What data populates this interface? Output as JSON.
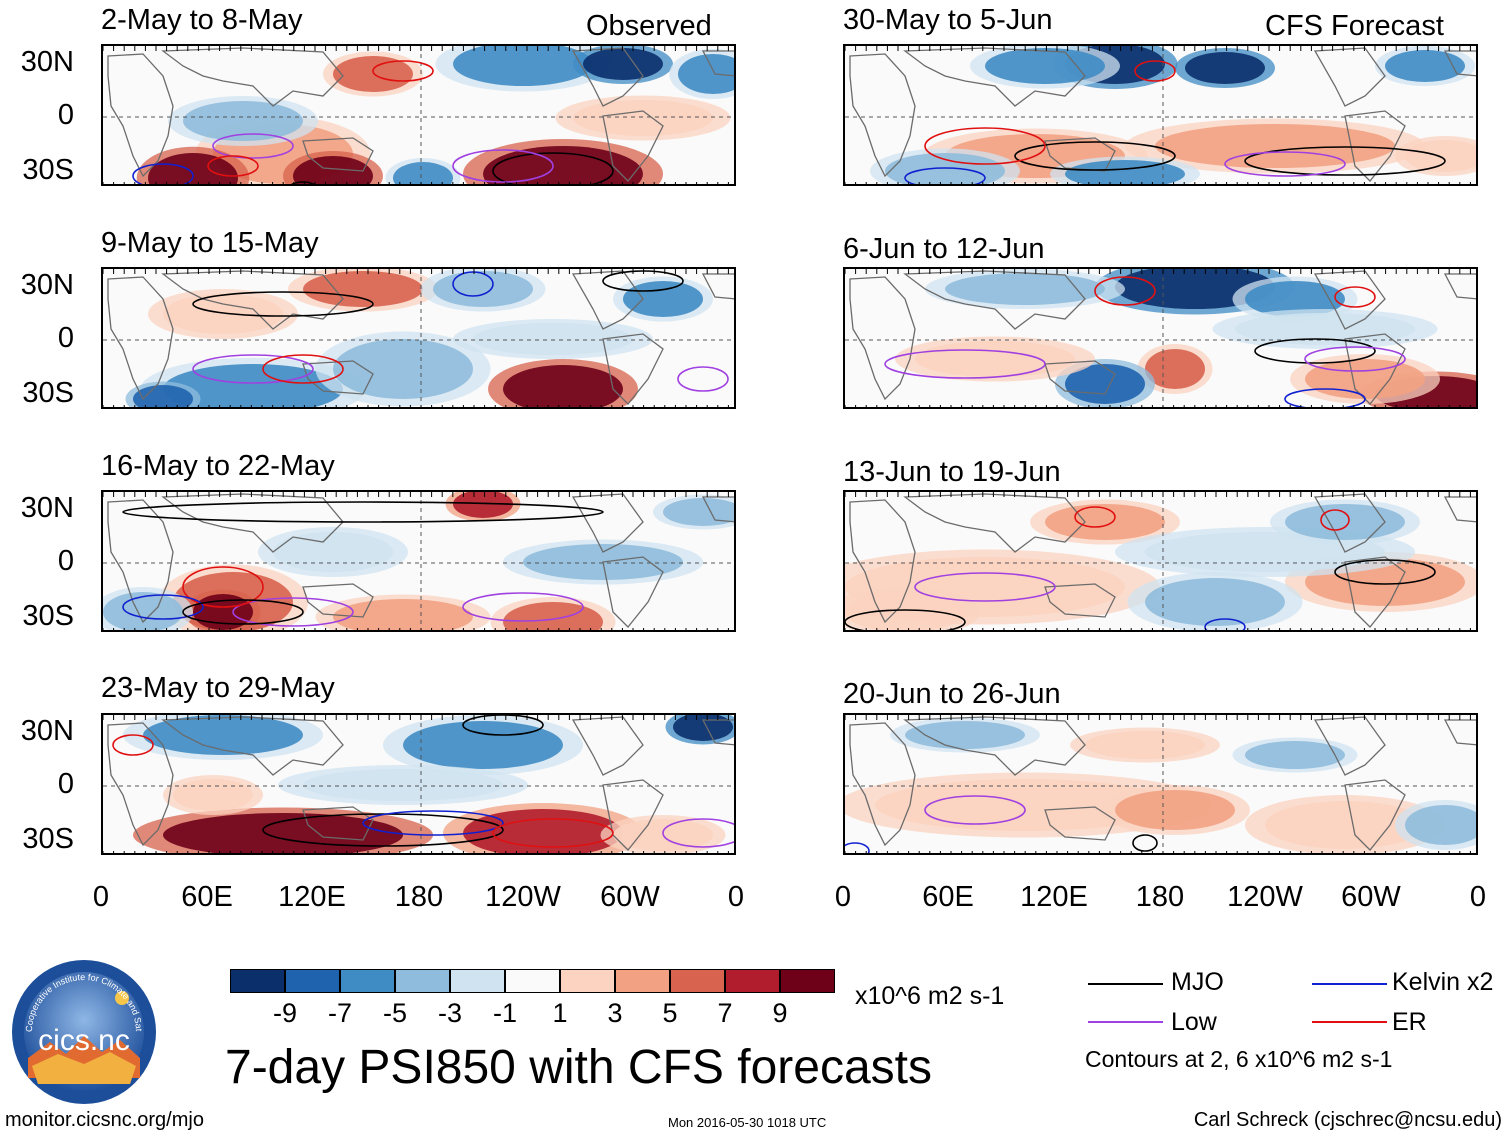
{
  "header": {
    "left_label": "Observed",
    "right_label": "CFS Forecast"
  },
  "panels": {
    "observed": [
      {
        "title": "2-May to 8-May"
      },
      {
        "title": "9-May to 15-May"
      },
      {
        "title": "16-May to 22-May"
      },
      {
        "title": "23-May to 29-May"
      }
    ],
    "forecast": [
      {
        "title": "30-May to 5-Jun"
      },
      {
        "title": "6-Jun to 12-Jun"
      },
      {
        "title": "13-Jun to 19-Jun"
      },
      {
        "title": "20-Jun to 26-Jun"
      }
    ]
  },
  "axes": {
    "lat_labels": [
      "30N",
      "0",
      "30S"
    ],
    "lon_labels": [
      "0",
      "60E",
      "120E",
      "180",
      "120W",
      "60W",
      "0"
    ]
  },
  "colorbar": {
    "colors": [
      "#0a2f6b",
      "#1f63ae",
      "#3f8cc4",
      "#8fbcdc",
      "#cfe3f0",
      "#fafafa",
      "#fbd3c0",
      "#f2a283",
      "#d8634e",
      "#b11d2c",
      "#6e0018"
    ],
    "labels": [
      "-9",
      "-7",
      "-5",
      "-3",
      "-1",
      "1",
      "3",
      "5",
      "7",
      "9"
    ],
    "units": "x10^6 m2 s-1"
  },
  "legend": {
    "items": [
      {
        "label": "MJO",
        "color": "#000000"
      },
      {
        "label": "Kelvin x2",
        "color": "#1020d0"
      },
      {
        "label": "Low",
        "color": "#a040e0"
      },
      {
        "label": "ER",
        "color": "#e01010"
      }
    ],
    "contour_note": "Contours at 2, 6 x10^6 m2 s-1"
  },
  "title": "7-day PSI850 with CFS forecasts",
  "footer": {
    "left": "monitor.cicsnc.org/mjo",
    "center": "Mon 2016-05-30 1018 UTC",
    "right": "Carl Schreck (cjschrec@ncsu.edu)"
  },
  "logo": {
    "text": "cics.nc",
    "ring_text": "Cooperative Institute for Climate and Satellites"
  }
}
